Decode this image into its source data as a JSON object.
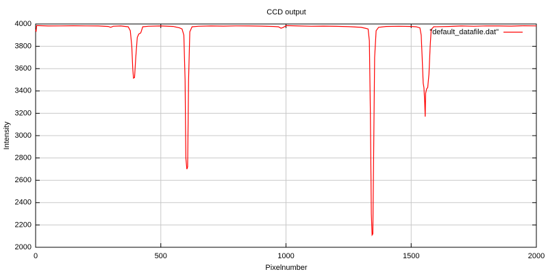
{
  "chart_data": {
    "type": "line",
    "title": "CCD output",
    "xlabel": "Pixelnumber",
    "ylabel": "Intensity",
    "xlim": [
      0,
      2000
    ],
    "xticks": [
      0,
      500,
      1000,
      1500,
      2000
    ],
    "ylim": [
      2000,
      4000
    ],
    "yticks": [
      2000,
      2200,
      2400,
      2600,
      2800,
      3000,
      3200,
      3400,
      3600,
      3800,
      4000
    ],
    "grid": true,
    "legend": "top right",
    "x": [
      0,
      2,
      4,
      8,
      50,
      100,
      150,
      200,
      250,
      290,
      300,
      310,
      340,
      370,
      378,
      384,
      388,
      391,
      395,
      400,
      406,
      412,
      420,
      428,
      450,
      500,
      550,
      575,
      585,
      592,
      597,
      600,
      604,
      607,
      611,
      616,
      625,
      650,
      700,
      750,
      800,
      850,
      900,
      950,
      970,
      980,
      990,
      1000,
      1050,
      1100,
      1150,
      1200,
      1250,
      1300,
      1320,
      1328,
      1333,
      1337,
      1341,
      1344,
      1347,
      1350,
      1354,
      1360,
      1370,
      1400,
      1450,
      1500,
      1520,
      1535,
      1540,
      1544,
      1548,
      1551,
      1554,
      1556,
      1558,
      1562,
      1566,
      1571,
      1576,
      1580,
      1590,
      1650,
      1700,
      1750,
      1800,
      1850,
      1900,
      1950,
      2000
    ],
    "series": [
      {
        "name": "\"default_datafile.dat\"",
        "color": "#ff0000",
        "values": [
          3950,
          3930,
          3985,
          3985,
          3982,
          3983,
          3984,
          3983,
          3982,
          3978,
          3970,
          3980,
          3982,
          3975,
          3940,
          3800,
          3600,
          3515,
          3520,
          3700,
          3880,
          3910,
          3920,
          3975,
          3980,
          3982,
          3978,
          3965,
          3955,
          3900,
          3500,
          2800,
          2700,
          2720,
          3500,
          3930,
          3975,
          3980,
          3982,
          3981,
          3983,
          3982,
          3981,
          3978,
          3975,
          3962,
          3970,
          3985,
          3982,
          3980,
          3981,
          3979,
          3976,
          3970,
          3960,
          3955,
          3850,
          3200,
          2300,
          2110,
          2120,
          2800,
          3700,
          3940,
          3970,
          3978,
          3980,
          3978,
          3975,
          3965,
          3900,
          3700,
          3470,
          3430,
          3300,
          3170,
          3380,
          3420,
          3430,
          3550,
          3800,
          3950,
          3975,
          3978,
          3982,
          3980,
          3983,
          3982,
          3981,
          3984,
          3983
        ]
      }
    ]
  }
}
